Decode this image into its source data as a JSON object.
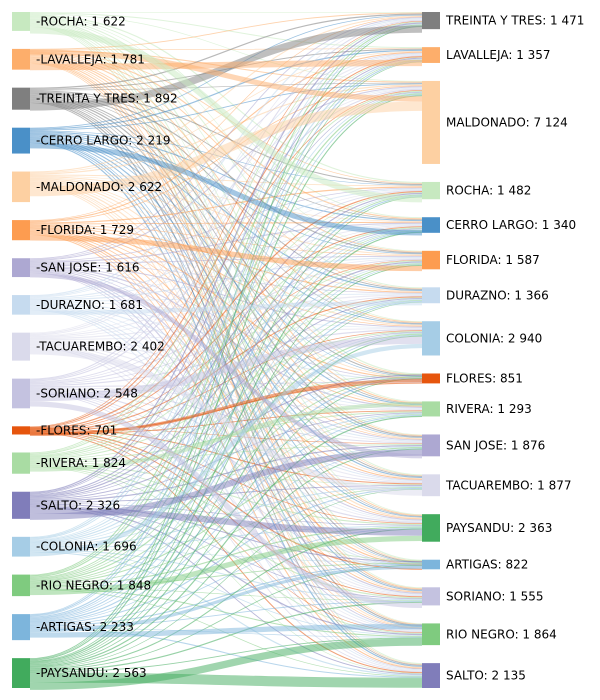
{
  "chart_data": {
    "type": "sankey",
    "title": "",
    "left_nodes": [
      {
        "label": "-ROCHA: 1 622",
        "color": "#c7e9c0"
      },
      {
        "label": "-LAVALLEJA: 1 781",
        "color": "#fdae6b"
      },
      {
        "label": "-TREINTA Y TRES: 1 892",
        "color": "#7f7f7f"
      },
      {
        "label": "-CERRO LARGO: 2 219",
        "color": "#4a90c8"
      },
      {
        "label": "-MALDONADO: 2 622",
        "color": "#fdd0a2"
      },
      {
        "label": "-FLORIDA: 1 729",
        "color": "#fd9c50"
      },
      {
        "label": "-SAN JOSE: 1 616",
        "color": "#ada8d2"
      },
      {
        "label": "-DURAZNO: 1 681",
        "color": "#c6dbef"
      },
      {
        "label": "-TACUAREMBO: 2 402",
        "color": "#dadaeb"
      },
      {
        "label": "-SORIANO: 2 548",
        "color": "#c4c2e0"
      },
      {
        "label": "-FLORES: 701",
        "color": "#e6550d"
      },
      {
        "label": "-RIVERA: 1 824",
        "color": "#a9dca3"
      },
      {
        "label": "-SALTO: 2 326",
        "color": "#807dba"
      },
      {
        "label": "-COLONIA: 1 696",
        "color": "#a6cde6"
      },
      {
        "label": "-RIO NEGRO: 1 848",
        "color": "#7fcb7f"
      },
      {
        "label": "-ARTIGAS: 2 233",
        "color": "#7db5dc"
      },
      {
        "label": "-PAYSANDU: 2 563",
        "color": "#41ab5d"
      }
    ],
    "right_nodes": [
      {
        "label": "TREINTA Y TRES: 1 471",
        "color": "#7f7f7f"
      },
      {
        "label": "LAVALLEJA: 1 357",
        "color": "#fdae6b"
      },
      {
        "label": "MALDONADO: 7 124",
        "color": "#fdd0a2"
      },
      {
        "label": "ROCHA: 1 482",
        "color": "#c7e9c0"
      },
      {
        "label": "CERRO LARGO: 1 340",
        "color": "#4a90c8"
      },
      {
        "label": "FLORIDA: 1 587",
        "color": "#fd9c50"
      },
      {
        "label": "DURAZNO: 1 366",
        "color": "#c6dbef"
      },
      {
        "label": "COLONIA: 2 940",
        "color": "#a6cde6"
      },
      {
        "label": "FLORES: 851",
        "color": "#e6550d"
      },
      {
        "label": "RIVERA: 1 293",
        "color": "#a9dca3"
      },
      {
        "label": "SAN JOSE: 1 876",
        "color": "#ada8d2"
      },
      {
        "label": "TACUAREMBO: 1 877",
        "color": "#dadaeb"
      },
      {
        "label": "PAYSANDU: 2 363",
        "color": "#41ab5d"
      },
      {
        "label": "ARTIGAS: 822",
        "color": "#7db5dc"
      },
      {
        "label": "SORIANO: 1 555",
        "color": "#c4c2e0"
      },
      {
        "label": "RIO NEGRO: 1 864",
        "color": "#7fcb7f"
      },
      {
        "label": "SALTO: 2 135",
        "color": "#807dba"
      }
    ],
    "left_values": [
      1622,
      1781,
      1892,
      2219,
      2622,
      1729,
      1616,
      1681,
      2402,
      2548,
      701,
      1824,
      2326,
      1696,
      1848,
      2233,
      2563
    ],
    "right_values": [
      1471,
      1357,
      7124,
      1482,
      1340,
      1587,
      1366,
      2940,
      851,
      1293,
      1876,
      1877,
      2363,
      822,
      1555,
      1864,
      2135
    ],
    "highlight_flows": [
      {
        "source": 2,
        "target": 0,
        "value": 700
      },
      {
        "source": 1,
        "target": 1,
        "value": 600
      },
      {
        "source": 1,
        "target": 2,
        "value": 500
      },
      {
        "source": 4,
        "target": 2,
        "value": 900
      },
      {
        "source": 3,
        "target": 4,
        "value": 500
      },
      {
        "source": 0,
        "target": 3,
        "value": 600
      },
      {
        "source": 5,
        "target": 5,
        "value": 500
      },
      {
        "source": 7,
        "target": 6,
        "value": 400
      },
      {
        "source": 8,
        "target": 11,
        "value": 600
      },
      {
        "source": 9,
        "target": 7,
        "value": 700
      },
      {
        "source": 10,
        "target": 8,
        "value": 300
      },
      {
        "source": 11,
        "target": 9,
        "value": 400
      },
      {
        "source": 12,
        "target": 12,
        "value": 600
      },
      {
        "source": 13,
        "target": 7,
        "value": 400
      },
      {
        "source": 14,
        "target": 12,
        "value": 500
      },
      {
        "source": 15,
        "target": 13,
        "value": 300
      },
      {
        "source": 16,
        "target": 16,
        "value": 900
      },
      {
        "source": 16,
        "target": 15,
        "value": 700
      },
      {
        "source": 12,
        "target": 10,
        "value": 600
      },
      {
        "source": 9,
        "target": 14,
        "value": 500
      },
      {
        "source": 6,
        "target": 10,
        "value": 400
      },
      {
        "source": 15,
        "target": 15,
        "value": 500
      }
    ]
  }
}
